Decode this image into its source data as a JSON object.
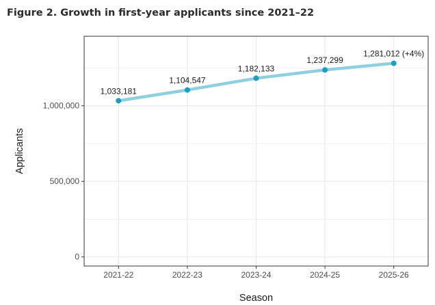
{
  "figure_title": "Figure 2. Growth in first-year applicants since 2021–22",
  "chart_data": {
    "type": "line",
    "title": "Figure 2. Growth in first-year applicants since 2021–22",
    "xlabel": "Season",
    "ylabel": "Applicants",
    "categories": [
      "2021-22",
      "2022-23",
      "2023-24",
      "2024-25",
      "2025-26"
    ],
    "series": [
      {
        "name": "Applicants",
        "values": [
          1033181,
          1104547,
          1182133,
          1237299,
          1281012
        ],
        "labels": [
          "1,033,181",
          "1,104,547",
          "1,182,133",
          "1,237,299",
          "1,281,012 (+4%)"
        ]
      }
    ],
    "ylim": [
      -60000,
      1460000
    ],
    "yticks": [
      0,
      500000,
      1000000
    ],
    "ytick_labels": [
      "0",
      "500,000",
      "1,000,000"
    ],
    "grid": true,
    "line_color": "#8ed0e0",
    "point_color": "#1a9fc0",
    "panel_border_color": "#333333",
    "grid_color": "#ebebeb"
  }
}
